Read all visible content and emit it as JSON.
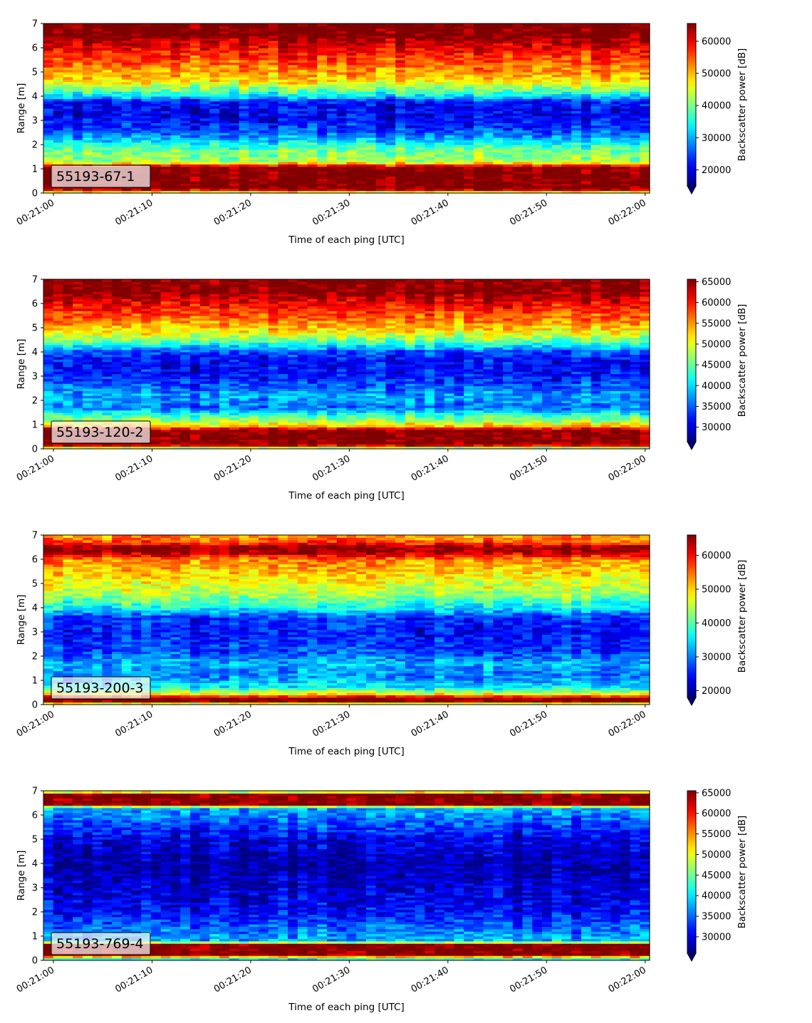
{
  "chart_data": [
    {
      "type": "heatmap",
      "label": "55193-67-1",
      "xlabel": "Time of each ping [UTC]",
      "ylabel": "Range [m]",
      "xticks": [
        "00:21:00",
        "00:21:10",
        "00:21:20",
        "00:21:30",
        "00:21:40",
        "00:21:50",
        "00:22:00"
      ],
      "yticks": [
        0,
        1,
        2,
        3,
        4,
        5,
        6,
        7
      ],
      "ylim": [
        0,
        7
      ],
      "colorbar": {
        "label": "Backscatter power [dB]",
        "ticks": [
          20000,
          30000,
          40000,
          50000,
          60000
        ],
        "vmin": 15000,
        "vmax": 65500,
        "extend": "min"
      },
      "profile": [
        {
          "range": 0.0,
          "value": 40000
        },
        {
          "range": 0.18,
          "value": 66000
        },
        {
          "range": 1.05,
          "value": 66000
        },
        {
          "range": 1.15,
          "value": 58000
        },
        {
          "range": 1.3,
          "value": 42000
        },
        {
          "range": 1.8,
          "value": 39000
        },
        {
          "range": 2.1,
          "value": 33000
        },
        {
          "range": 2.6,
          "value": 24000
        },
        {
          "range": 3.2,
          "value": 20000
        },
        {
          "range": 3.8,
          "value": 22000
        },
        {
          "range": 4.0,
          "value": 32000
        },
        {
          "range": 4.3,
          "value": 40000
        },
        {
          "range": 4.6,
          "value": 47000
        },
        {
          "range": 5.2,
          "value": 53000
        },
        {
          "range": 5.8,
          "value": 58000
        },
        {
          "range": 6.3,
          "value": 63000
        },
        {
          "range": 6.5,
          "value": 66000
        },
        {
          "range": 7.0,
          "value": 66000
        }
      ]
    },
    {
      "type": "heatmap",
      "label": "55193-120-2",
      "xlabel": "Time of each ping [UTC]",
      "ylabel": "Range [m]",
      "xticks": [
        "00:21:00",
        "00:21:10",
        "00:21:20",
        "00:21:30",
        "00:21:40",
        "00:21:50",
        "00:22:00"
      ],
      "yticks": [
        0,
        1,
        2,
        3,
        4,
        5,
        6,
        7
      ],
      "ylim": [
        0,
        7
      ],
      "colorbar": {
        "label": "Backscatter power [dB]",
        "ticks": [
          30000,
          35000,
          40000,
          45000,
          50000,
          55000,
          60000,
          65000
        ],
        "vmin": 26500,
        "vmax": 65600,
        "extend": "min"
      },
      "profile": [
        {
          "range": 0.0,
          "value": 42000
        },
        {
          "range": 0.18,
          "value": 65600
        },
        {
          "range": 0.8,
          "value": 65600
        },
        {
          "range": 0.9,
          "value": 55000
        },
        {
          "range": 1.1,
          "value": 49000
        },
        {
          "range": 1.4,
          "value": 43000
        },
        {
          "range": 1.7,
          "value": 36000
        },
        {
          "range": 2.2,
          "value": 38000
        },
        {
          "range": 2.8,
          "value": 33000
        },
        {
          "range": 3.5,
          "value": 31000
        },
        {
          "range": 4.0,
          "value": 34000
        },
        {
          "range": 4.4,
          "value": 44000
        },
        {
          "range": 4.8,
          "value": 51000
        },
        {
          "range": 5.3,
          "value": 56000
        },
        {
          "range": 6.0,
          "value": 61000
        },
        {
          "range": 6.5,
          "value": 65600
        },
        {
          "range": 7.0,
          "value": 65600
        }
      ]
    },
    {
      "type": "heatmap",
      "label": "55193-200-3",
      "xlabel": "Time of each ping [UTC]",
      "ylabel": "Range [m]",
      "xticks": [
        "00:21:00",
        "00:21:10",
        "00:21:20",
        "00:21:30",
        "00:21:40",
        "00:21:50",
        "00:22:00"
      ],
      "yticks": [
        0,
        1,
        2,
        3,
        4,
        5,
        6,
        7
      ],
      "ylim": [
        0,
        7
      ],
      "colorbar": {
        "label": "Backscatter power [dB]",
        "ticks": [
          20000,
          30000,
          40000,
          50000,
          60000
        ],
        "vmin": 18000,
        "vmax": 66000,
        "extend": "min"
      },
      "profile": [
        {
          "range": 0.0,
          "value": 35000
        },
        {
          "range": 0.12,
          "value": 66000
        },
        {
          "range": 0.3,
          "value": 66000
        },
        {
          "range": 0.4,
          "value": 50000
        },
        {
          "range": 0.7,
          "value": 36000
        },
        {
          "range": 1.2,
          "value": 30000
        },
        {
          "range": 1.7,
          "value": 33000
        },
        {
          "range": 2.2,
          "value": 27000
        },
        {
          "range": 3.0,
          "value": 25000
        },
        {
          "range": 3.6,
          "value": 26000
        },
        {
          "range": 4.0,
          "value": 36000
        },
        {
          "range": 4.6,
          "value": 44000
        },
        {
          "range": 5.3,
          "value": 49000
        },
        {
          "range": 6.0,
          "value": 54000
        },
        {
          "range": 6.3,
          "value": 64000
        },
        {
          "range": 6.5,
          "value": 66000
        },
        {
          "range": 6.7,
          "value": 57000
        },
        {
          "range": 7.0,
          "value": 52000
        }
      ]
    },
    {
      "type": "heatmap",
      "label": "55193-769-4",
      "xlabel": "Time of each ping [UTC]",
      "ylabel": "Range [m]",
      "xticks": [
        "00:21:00",
        "00:21:10",
        "00:21:20",
        "00:21:30",
        "00:21:40",
        "00:21:50",
        "00:22:00"
      ],
      "yticks": [
        0,
        1,
        2,
        3,
        4,
        5,
        6,
        7
      ],
      "ylim": [
        0,
        7
      ],
      "colorbar": {
        "label": "Backscatter power [dB]",
        "ticks": [
          30000,
          35000,
          40000,
          45000,
          50000,
          55000,
          60000,
          65000
        ],
        "vmin": 26000,
        "vmax": 65500,
        "extend": "min"
      },
      "profile": [
        {
          "range": 0.0,
          "value": 35000
        },
        {
          "range": 0.25,
          "value": 65500
        },
        {
          "range": 0.65,
          "value": 65500
        },
        {
          "range": 0.8,
          "value": 38000
        },
        {
          "range": 1.2,
          "value": 36000
        },
        {
          "range": 2.0,
          "value": 31000
        },
        {
          "range": 3.0,
          "value": 29000
        },
        {
          "range": 4.0,
          "value": 27500
        },
        {
          "range": 5.0,
          "value": 30000
        },
        {
          "range": 5.8,
          "value": 35000
        },
        {
          "range": 6.3,
          "value": 38000
        },
        {
          "range": 6.45,
          "value": 65500
        },
        {
          "range": 6.85,
          "value": 65500
        },
        {
          "range": 7.0,
          "value": 42000
        }
      ]
    }
  ]
}
